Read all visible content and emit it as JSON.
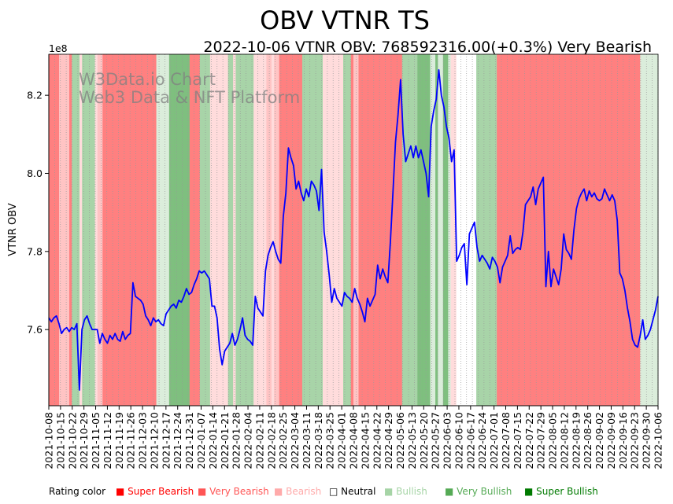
{
  "chart_data": {
    "type": "line",
    "title": "OBV VTNR TS",
    "subtitle": "2022-10-06 VTNR OBV: 768592316.00(+0.3%) Very Bearish",
    "ylabel": "VTNR OBV",
    "y_exponent_label": "1e8",
    "ylim": [
      7.405,
      8.305
    ],
    "y_ticks": [
      7.6,
      7.8,
      8.0,
      8.2
    ],
    "y_tick_labels": [
      "7.6",
      "7.8",
      "8.0",
      "8.2"
    ],
    "x_range": [
      "2021-10-08",
      "2022-10-06"
    ],
    "x_tick_labels": [
      "2021-10-08",
      "2021-10-15",
      "2021-10-22",
      "2021-10-29",
      "2021-11-05",
      "2021-11-12",
      "2021-11-19",
      "2021-11-26",
      "2021-12-03",
      "2021-12-10",
      "2021-12-17",
      "2021-12-24",
      "2021-12-31",
      "2022-01-07",
      "2022-01-14",
      "2022-01-21",
      "2022-01-28",
      "2022-02-04",
      "2022-02-11",
      "2022-02-18",
      "2022-02-25",
      "2022-03-04",
      "2022-03-11",
      "2022-03-18",
      "2022-03-25",
      "2022-04-01",
      "2022-04-08",
      "2022-04-15",
      "2022-04-22",
      "2022-04-29",
      "2022-05-06",
      "2022-05-13",
      "2022-05-20",
      "2022-05-27",
      "2022-06-03",
      "2022-06-10",
      "2022-06-17",
      "2022-06-24",
      "2022-07-01",
      "2022-07-08",
      "2022-07-15",
      "2022-07-22",
      "2022-07-29",
      "2022-08-05",
      "2022-08-12",
      "2022-08-19",
      "2022-08-26",
      "2022-09-02",
      "2022-09-09",
      "2022-09-16",
      "2022-09-23",
      "2022-09-30",
      "2022-10-06"
    ],
    "series": [
      {
        "name": "VTNR OBV",
        "color": "#0000ff",
        "values": [
          7.63,
          7.62,
          7.63,
          7.635,
          7.615,
          7.59,
          7.6,
          7.605,
          7.595,
          7.605,
          7.6,
          7.615,
          7.445,
          7.6,
          7.625,
          7.635,
          7.615,
          7.6,
          7.6,
          7.6,
          7.565,
          7.59,
          7.575,
          7.565,
          7.585,
          7.575,
          7.59,
          7.575,
          7.57,
          7.595,
          7.575,
          7.585,
          7.59,
          7.72,
          7.685,
          7.68,
          7.675,
          7.665,
          7.635,
          7.625,
          7.61,
          7.63,
          7.62,
          7.625,
          7.615,
          7.61,
          7.64,
          7.65,
          7.66,
          7.665,
          7.655,
          7.675,
          7.67,
          7.685,
          7.705,
          7.69,
          7.695,
          7.715,
          7.73,
          7.75,
          7.745,
          7.75,
          7.74,
          7.73,
          7.66,
          7.66,
          7.63,
          7.55,
          7.51,
          7.545,
          7.555,
          7.565,
          7.59,
          7.56,
          7.575,
          7.6,
          7.63,
          7.585,
          7.575,
          7.57,
          7.56,
          7.685,
          7.655,
          7.645,
          7.635,
          7.75,
          7.79,
          7.81,
          7.825,
          7.8,
          7.78,
          7.77,
          7.89,
          7.95,
          8.065,
          8.04,
          8.02,
          7.96,
          7.98,
          7.95,
          7.93,
          7.96,
          7.94,
          7.98,
          7.97,
          7.955,
          7.905,
          8.01,
          7.85,
          7.8,
          7.74,
          7.67,
          7.705,
          7.68,
          7.67,
          7.66,
          7.695,
          7.685,
          7.68,
          7.67,
          7.705,
          7.68,
          7.665,
          7.645,
          7.62,
          7.68,
          7.66,
          7.675,
          7.69,
          7.765,
          7.73,
          7.755,
          7.735,
          7.72,
          7.825,
          7.95,
          8.08,
          8.15,
          8.24,
          8.1,
          8.03,
          8.05,
          8.07,
          8.04,
          8.07,
          8.04,
          8.06,
          8.03,
          8.0,
          7.94,
          8.12,
          8.16,
          8.19,
          8.265,
          8.2,
          8.17,
          8.12,
          8.09,
          8.03,
          8.06,
          7.775,
          7.79,
          7.81,
          7.82,
          7.715,
          7.845,
          7.86,
          7.875,
          7.81,
          7.775,
          7.79,
          7.78,
          7.77,
          7.755,
          7.785,
          7.775,
          7.76,
          7.72,
          7.76,
          7.775,
          7.79,
          7.84,
          7.795,
          7.805,
          7.81,
          7.805,
          7.85,
          7.92,
          7.93,
          7.94,
          7.965,
          7.92,
          7.96,
          7.975,
          7.99,
          7.71,
          7.8,
          7.71,
          7.755,
          7.735,
          7.715,
          7.755,
          7.845,
          7.805,
          7.795,
          7.78,
          7.855,
          7.91,
          7.935,
          7.95,
          7.96,
          7.93,
          7.955,
          7.94,
          7.95,
          7.935,
          7.93,
          7.935,
          7.96,
          7.945,
          7.93,
          7.945,
          7.93,
          7.88,
          7.745,
          7.73,
          7.7,
          7.655,
          7.62,
          7.575,
          7.56,
          7.555,
          7.585,
          7.625,
          7.575,
          7.585,
          7.6,
          7.625,
          7.65,
          7.685
        ]
      }
    ],
    "rating_bands": "0000111104442444442110000000000000000000005555566666666000044442222222442444444422222112110000000004444444422222222444011000000000000000004444446666655655665223333333344444444000000000000000000000000000000000000000000000000000000005555555",
    "watermark": [
      "W3Data.io Chart",
      "Web3 Data & NFT Platform"
    ],
    "legend": {
      "title": "Rating color",
      "items": [
        {
          "label": "Super Bearish",
          "color": "#ff0000"
        },
        {
          "label": "Very Bearish",
          "color": "#ff5555"
        },
        {
          "label": "Bearish",
          "color": "#ffaaaa"
        },
        {
          "label": "Neutral",
          "color": "#000000"
        },
        {
          "label": "Bullish",
          "color": "#a6d4a6"
        },
        {
          "label": "Very Bullish",
          "color": "#55aa55"
        },
        {
          "label": "Super Bullish",
          "color": "#007a00"
        }
      ]
    },
    "band_colors": {
      "0": "#ff8080",
      "1": "#ffc4c4",
      "2": "#ffdcdc",
      "3": "#ffffff",
      "4": "#a8d4a8",
      "5": "#dbeddb",
      "6": "#7fbf7f"
    }
  }
}
